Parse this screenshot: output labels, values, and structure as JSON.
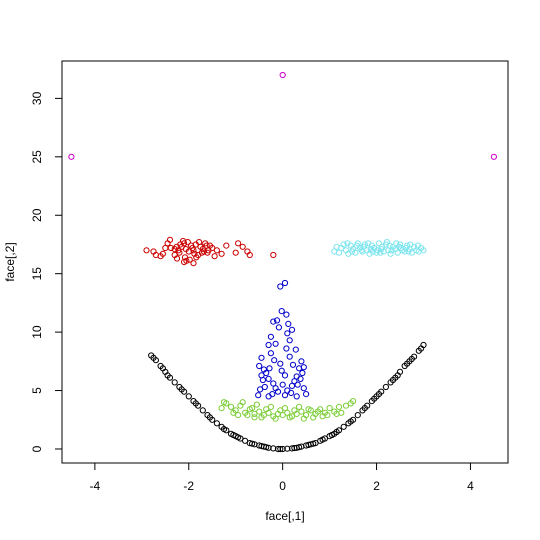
{
  "chart_data": {
    "type": "scatter",
    "title": "",
    "xlabel": "face[,1]",
    "ylabel": "face[,2]",
    "xlim": [
      -4.7,
      4.8
    ],
    "ylim": [
      -1.2,
      33.2
    ],
    "x_ticks": [
      -4,
      -2,
      0,
      2,
      4
    ],
    "y_ticks": [
      0,
      5,
      10,
      15,
      20,
      25,
      30
    ],
    "grid": false,
    "legend": "none",
    "marker": "open-circle",
    "series": [
      {
        "color": "#cc0000",
        "points": [
          [
            -2.9,
            17.0
          ],
          [
            -2.75,
            16.9
          ],
          [
            -2.7,
            16.6
          ],
          [
            -2.6,
            16.5
          ],
          [
            -2.55,
            16.7
          ],
          [
            -2.5,
            17.2
          ],
          [
            -2.45,
            17.6
          ],
          [
            -2.4,
            17.9
          ],
          [
            -2.3,
            17.1
          ],
          [
            -2.25,
            16.3
          ],
          [
            -2.2,
            16.8
          ],
          [
            -2.15,
            17.3
          ],
          [
            -2.1,
            17.6
          ],
          [
            -2.05,
            16.1
          ],
          [
            -2.0,
            16.9
          ],
          [
            -1.95,
            17.4
          ],
          [
            -1.9,
            17.0
          ],
          [
            -1.85,
            17.5
          ],
          [
            -1.8,
            16.6
          ],
          [
            -1.75,
            17.3
          ],
          [
            -1.7,
            17.1
          ],
          [
            -1.65,
            17.6
          ],
          [
            -1.6,
            16.8
          ],
          [
            -1.55,
            17.4
          ],
          [
            -1.5,
            17.2
          ],
          [
            -1.45,
            16.5
          ],
          [
            -1.4,
            17.0
          ],
          [
            -1.3,
            16.7
          ],
          [
            -1.2,
            17.4
          ],
          [
            -1.0,
            16.8
          ],
          [
            -0.95,
            17.6
          ],
          [
            -0.85,
            17.3
          ],
          [
            -0.75,
            16.9
          ],
          [
            -0.7,
            16.6
          ],
          [
            -0.2,
            16.6
          ],
          [
            -2.12,
            17.8
          ],
          [
            -2.08,
            16.4
          ],
          [
            -1.98,
            16.2
          ],
          [
            -2.22,
            17.0
          ],
          [
            -1.88,
            16.7
          ],
          [
            -1.78,
            17.7
          ],
          [
            -1.68,
            16.9
          ],
          [
            -2.3,
            16.6
          ],
          [
            -2.18,
            17.5
          ],
          [
            -1.92,
            17.2
          ],
          [
            -2.02,
            17.7
          ],
          [
            -1.58,
            17.0
          ],
          [
            -2.38,
            17.2
          ],
          [
            -1.72,
            16.8
          ],
          [
            -2.06,
            17.1
          ],
          [
            -1.9,
            15.9
          ],
          [
            -2.1,
            16.0
          ],
          [
            -1.62,
            17.4
          ],
          [
            -2.26,
            17.3
          ],
          [
            -1.84,
            16.4
          ]
        ]
      },
      {
        "color": "#7fe5ef",
        "points": [
          [
            1.1,
            16.9
          ],
          [
            1.15,
            17.3
          ],
          [
            1.2,
            16.8
          ],
          [
            1.3,
            17.5
          ],
          [
            1.35,
            17.0
          ],
          [
            1.4,
            16.7
          ],
          [
            1.45,
            17.4
          ],
          [
            1.5,
            17.1
          ],
          [
            1.55,
            16.8
          ],
          [
            1.6,
            17.6
          ],
          [
            1.65,
            17.2
          ],
          [
            1.7,
            16.9
          ],
          [
            1.75,
            17.5
          ],
          [
            1.8,
            17.0
          ],
          [
            1.85,
            16.7
          ],
          [
            1.9,
            17.4
          ],
          [
            1.95,
            17.2
          ],
          [
            2.0,
            16.8
          ],
          [
            2.05,
            17.6
          ],
          [
            2.1,
            17.1
          ],
          [
            2.15,
            16.9
          ],
          [
            2.2,
            17.5
          ],
          [
            2.25,
            17.0
          ],
          [
            2.3,
            16.7
          ],
          [
            2.35,
            17.3
          ],
          [
            2.4,
            17.1
          ],
          [
            2.45,
            16.8
          ],
          [
            2.5,
            17.5
          ],
          [
            2.55,
            17.0
          ],
          [
            2.6,
            16.9
          ],
          [
            2.65,
            17.4
          ],
          [
            2.7,
            17.1
          ],
          [
            2.75,
            16.8
          ],
          [
            2.8,
            17.3
          ],
          [
            2.85,
            17.0
          ],
          [
            2.9,
            16.9
          ],
          [
            2.95,
            17.2
          ],
          [
            3.0,
            17.0
          ],
          [
            1.25,
            17.2
          ],
          [
            1.48,
            16.9
          ],
          [
            1.72,
            17.3
          ],
          [
            1.92,
            16.9
          ],
          [
            2.12,
            17.3
          ],
          [
            2.32,
            17.0
          ],
          [
            2.52,
            17.2
          ],
          [
            2.72,
            17.5
          ],
          [
            1.58,
            17.4
          ],
          [
            1.82,
            17.6
          ],
          [
            2.02,
            17.0
          ],
          [
            2.22,
            17.7
          ],
          [
            2.42,
            17.6
          ],
          [
            2.62,
            17.2
          ],
          [
            1.38,
            17.6
          ],
          [
            1.68,
            17.0
          ],
          [
            1.88,
            17.1
          ],
          [
            2.08,
            16.8
          ],
          [
            2.28,
            17.4
          ],
          [
            2.48,
            17.3
          ],
          [
            2.68,
            16.9
          ],
          [
            2.88,
            17.4
          ]
        ]
      },
      {
        "color": "#0000cc",
        "points": [
          [
            0.05,
            14.2
          ],
          [
            -0.05,
            13.9
          ],
          [
            -0.02,
            11.8
          ],
          [
            0.08,
            11.5
          ],
          [
            -0.12,
            11.0
          ],
          [
            0.12,
            10.7
          ],
          [
            -0.2,
            10.9
          ],
          [
            0.2,
            10.2
          ],
          [
            -0.08,
            10.4
          ],
          [
            -0.25,
            9.6
          ],
          [
            0.15,
            9.3
          ],
          [
            -0.3,
            8.9
          ],
          [
            0.1,
            9.9
          ],
          [
            -0.15,
            9.0
          ],
          [
            0.28,
            8.5
          ],
          [
            -0.45,
            7.8
          ],
          [
            0.4,
            7.5
          ],
          [
            -0.5,
            7.1
          ],
          [
            0.45,
            7.0
          ],
          [
            -0.4,
            6.8
          ],
          [
            0.35,
            6.9
          ],
          [
            -0.35,
            6.5
          ],
          [
            0.3,
            6.2
          ],
          [
            -0.3,
            6.0
          ],
          [
            0.25,
            5.8
          ],
          [
            -0.2,
            5.6
          ],
          [
            0.2,
            5.4
          ],
          [
            -0.15,
            5.2
          ],
          [
            0.1,
            5.0
          ],
          [
            -0.1,
            4.9
          ],
          [
            0.0,
            5.5
          ],
          [
            0.05,
            6.3
          ],
          [
            -0.05,
            7.3
          ],
          [
            0.15,
            7.9
          ],
          [
            -0.25,
            8.2
          ],
          [
            0.38,
            6.0
          ],
          [
            -0.42,
            5.9
          ],
          [
            0.45,
            5.2
          ],
          [
            -0.48,
            5.1
          ],
          [
            0.5,
            4.7
          ],
          [
            -0.52,
            4.6
          ],
          [
            0.3,
            4.5
          ],
          [
            -0.3,
            4.5
          ],
          [
            0.08,
            8.6
          ],
          [
            -0.18,
            7.6
          ],
          [
            0.22,
            7.2
          ],
          [
            -0.28,
            6.9
          ],
          [
            0.32,
            5.5
          ],
          [
            -0.38,
            5.3
          ],
          [
            0.18,
            4.8
          ],
          [
            -0.22,
            4.7
          ],
          [
            0.42,
            6.5
          ],
          [
            -0.45,
            6.3
          ],
          [
            0.05,
            4.6
          ],
          [
            -0.02,
            6.7
          ]
        ]
      },
      {
        "color": "#7ccd38",
        "points": [
          [
            -1.3,
            3.5
          ],
          [
            -1.2,
            3.9
          ],
          [
            -1.1,
            3.6
          ],
          [
            -1.0,
            3.3
          ],
          [
            -0.9,
            3.7
          ],
          [
            -0.8,
            3.1
          ],
          [
            -0.7,
            3.4
          ],
          [
            -0.6,
            3.0
          ],
          [
            -0.5,
            3.2
          ],
          [
            -0.4,
            2.9
          ],
          [
            -0.3,
            3.1
          ],
          [
            -0.2,
            2.8
          ],
          [
            -0.1,
            3.0
          ],
          [
            0.0,
            2.9
          ],
          [
            0.1,
            3.1
          ],
          [
            0.2,
            2.8
          ],
          [
            0.3,
            3.0
          ],
          [
            0.4,
            3.2
          ],
          [
            0.5,
            2.9
          ],
          [
            0.6,
            3.3
          ],
          [
            0.7,
            3.0
          ],
          [
            0.8,
            3.4
          ],
          [
            0.9,
            3.1
          ],
          [
            1.0,
            3.5
          ],
          [
            1.1,
            3.2
          ],
          [
            1.2,
            3.6
          ],
          [
            1.35,
            3.7
          ],
          [
            1.45,
            3.9
          ],
          [
            1.5,
            4.1
          ],
          [
            -1.25,
            4.0
          ],
          [
            -0.95,
            2.9
          ],
          [
            -0.65,
            3.5
          ],
          [
            -0.35,
            3.4
          ],
          [
            -0.05,
            3.3
          ],
          [
            0.25,
            3.3
          ],
          [
            0.55,
            3.4
          ],
          [
            0.85,
            2.8
          ],
          [
            1.15,
            3.0
          ],
          [
            -0.75,
            2.9
          ],
          [
            -0.45,
            2.7
          ],
          [
            -0.15,
            2.6
          ],
          [
            0.15,
            2.7
          ],
          [
            0.45,
            2.6
          ],
          [
            0.75,
            3.2
          ],
          [
            -1.05,
            3.1
          ],
          [
            -0.85,
            4.0
          ],
          [
            -0.55,
            3.8
          ],
          [
            0.35,
            3.6
          ],
          [
            0.65,
            2.7
          ],
          [
            1.25,
            3.1
          ],
          [
            -0.25,
            3.6
          ],
          [
            0.05,
            3.5
          ],
          [
            -0.6,
            2.7
          ],
          [
            0.95,
            2.9
          ]
        ]
      },
      {
        "color": "#000000",
        "points": [
          [
            -2.8,
            8.0
          ],
          [
            -2.7,
            7.6
          ],
          [
            -2.6,
            7.1
          ],
          [
            -2.5,
            6.6
          ],
          [
            -2.4,
            6.1
          ],
          [
            -2.3,
            5.7
          ],
          [
            -2.2,
            5.3
          ],
          [
            -2.1,
            4.9
          ],
          [
            -2.0,
            4.5
          ],
          [
            -1.9,
            4.1
          ],
          [
            -1.8,
            3.7
          ],
          [
            -1.7,
            3.3
          ],
          [
            -1.6,
            2.9
          ],
          [
            -1.5,
            2.5
          ],
          [
            -1.4,
            2.2
          ],
          [
            -1.3,
            1.9
          ],
          [
            -1.2,
            1.6
          ],
          [
            -1.1,
            1.3
          ],
          [
            -1.0,
            1.1
          ],
          [
            -0.9,
            0.9
          ],
          [
            -0.8,
            0.7
          ],
          [
            -0.7,
            0.5
          ],
          [
            -0.6,
            0.4
          ],
          [
            -0.5,
            0.3
          ],
          [
            -0.4,
            0.2
          ],
          [
            -0.3,
            0.1
          ],
          [
            -0.2,
            0.05
          ],
          [
            -0.1,
            0.0
          ],
          [
            0.0,
            0.0
          ],
          [
            0.1,
            0.02
          ],
          [
            0.2,
            0.05
          ],
          [
            0.3,
            0.1
          ],
          [
            0.4,
            0.2
          ],
          [
            0.5,
            0.3
          ],
          [
            0.6,
            0.4
          ],
          [
            0.7,
            0.5
          ],
          [
            0.8,
            0.7
          ],
          [
            0.9,
            0.9
          ],
          [
            1.0,
            1.1
          ],
          [
            1.1,
            1.3
          ],
          [
            1.2,
            1.6
          ],
          [
            1.3,
            1.9
          ],
          [
            1.4,
            2.2
          ],
          [
            1.5,
            2.5
          ],
          [
            1.6,
            2.9
          ],
          [
            1.7,
            3.3
          ],
          [
            1.8,
            3.7
          ],
          [
            1.9,
            4.1
          ],
          [
            2.0,
            4.5
          ],
          [
            2.1,
            4.9
          ],
          [
            2.2,
            5.3
          ],
          [
            2.3,
            5.7
          ],
          [
            2.4,
            6.1
          ],
          [
            2.5,
            6.6
          ],
          [
            2.6,
            7.1
          ],
          [
            2.7,
            7.5
          ],
          [
            2.8,
            7.9
          ],
          [
            2.9,
            8.4
          ],
          [
            3.0,
            8.9
          ],
          [
            -2.75,
            7.8
          ],
          [
            -2.45,
            6.3
          ],
          [
            -2.15,
            5.1
          ],
          [
            -1.85,
            3.9
          ],
          [
            -1.55,
            2.7
          ],
          [
            -1.25,
            1.7
          ],
          [
            -0.95,
            1.0
          ],
          [
            -0.65,
            0.45
          ],
          [
            -0.35,
            0.15
          ],
          [
            -0.05,
            0.0
          ],
          [
            0.25,
            0.08
          ],
          [
            0.55,
            0.35
          ],
          [
            0.85,
            0.8
          ],
          [
            1.15,
            1.45
          ],
          [
            1.45,
            2.35
          ],
          [
            1.75,
            3.5
          ],
          [
            2.05,
            4.7
          ],
          [
            2.35,
            5.9
          ],
          [
            2.65,
            7.3
          ],
          [
            2.95,
            8.6
          ],
          [
            -2.55,
            6.9
          ],
          [
            -1.05,
            1.2
          ],
          [
            0.65,
            0.45
          ],
          [
            1.05,
            1.2
          ],
          [
            2.45,
            6.3
          ],
          [
            2.75,
            7.7
          ],
          [
            -0.45,
            0.25
          ],
          [
            0.35,
            0.15
          ],
          [
            1.95,
            4.3
          ]
        ]
      },
      {
        "color": "#cc00cc",
        "points": [
          [
            -4.5,
            25.0
          ],
          [
            0.0,
            32.0
          ],
          [
            4.5,
            25.0
          ]
        ]
      }
    ]
  }
}
